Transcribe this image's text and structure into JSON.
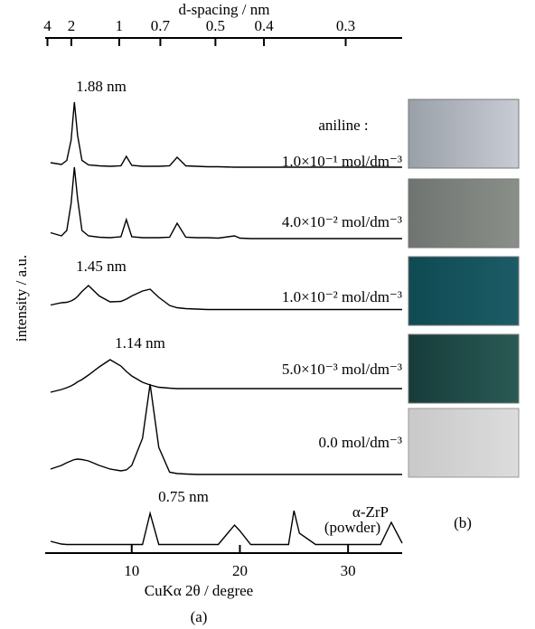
{
  "chart_data": {
    "type": "line",
    "xlabel": "CuKα 2θ / degree",
    "ylabel": "intensity / a.u.",
    "x2label": "d-spacing / nm",
    "panel_labels": [
      "(a)",
      "(b)"
    ],
    "xlim": [
      2,
      35
    ],
    "xticks": [
      10,
      20,
      30
    ],
    "x2ticks": [
      4,
      2,
      1,
      0.7,
      0.5,
      0.4,
      0.3
    ],
    "ylim": [
      0,
      100
    ],
    "x": [
      2.5,
      3.5,
      4.0,
      4.4,
      4.7,
      5.0,
      5.4,
      6,
      7,
      8,
      9,
      9.5,
      10,
      11,
      11.7,
      12.5,
      13.5,
      14.2,
      15,
      16,
      17,
      18,
      19.5,
      20,
      21,
      23,
      24.5,
      25,
      25.5,
      27,
      29,
      31,
      33,
      34,
      35
    ],
    "series": [
      {
        "name": "1.0×10⁻¹ mol/dm⁻³",
        "color": "#000000",
        "values": [
          85,
          84.6,
          85.5,
          90,
          98.4,
          91,
          85.5,
          84.5,
          84.3,
          84.2,
          84.3,
          86.4,
          84.4,
          84.2,
          84.2,
          84.2,
          84.3,
          86.2,
          84.3,
          84.2,
          84.1,
          84.1,
          84,
          84,
          84,
          84,
          84,
          84,
          84,
          84,
          84,
          84,
          84,
          84,
          84
        ]
      },
      {
        "name": "4.0×10⁻² mol/dm⁻³",
        "color": "#000000",
        "values": [
          69.5,
          68.8,
          70,
          76,
          84,
          77,
          70,
          68.8,
          68.5,
          68.4,
          68.6,
          72.4,
          68.6,
          68.4,
          68.4,
          68.4,
          68.5,
          71.6,
          68.5,
          68.4,
          68.4,
          68.3,
          68.8,
          68.3,
          68.2,
          68.2,
          68.2,
          68.2,
          68.2,
          68.2,
          68.2,
          68.2,
          68.2,
          68.2,
          68.2
        ]
      },
      {
        "name": "1.0×10⁻² mol/dm⁻³",
        "color": "#000000",
        "values": [
          53.5,
          54,
          54.1,
          54.4,
          54.8,
          55.4,
          56.5,
          57.8,
          55.5,
          54.2,
          54.3,
          54.8,
          55.5,
          56.6,
          57,
          55.2,
          53.4,
          52.9,
          52.7,
          52.6,
          52.5,
          52.5,
          52.5,
          52.5,
          52.5,
          52.5,
          52.5,
          52.5,
          52.5,
          52.5,
          52.5,
          52.5,
          52.5,
          52.5,
          52.5
        ]
      },
      {
        "name": "5.0×10⁻³ mol/dm⁻³",
        "color": "#000000",
        "values": [
          34.2,
          34.8,
          35.2,
          35.6,
          36,
          36.5,
          37,
          38,
          39.8,
          41.4,
          40,
          38.8,
          37.8,
          36.4,
          35.8,
          35.3,
          35.1,
          35,
          35,
          35,
          35,
          35,
          35,
          35,
          35,
          35,
          35,
          35,
          35,
          35,
          35,
          35,
          35,
          35,
          35
        ]
      },
      {
        "name": "0.0 mol/dm⁻³",
        "color": "#000000",
        "values": [
          17.2,
          18,
          18.6,
          19,
          19.3,
          19.4,
          19.3,
          19,
          18,
          17.2,
          16.8,
          17,
          18,
          24,
          36,
          22,
          16.5,
          16.2,
          16.1,
          16,
          16,
          16,
          16,
          16,
          16,
          16,
          16,
          16,
          16,
          16,
          16,
          16,
          16,
          16,
          16
        ]
      },
      {
        "name": "α-ZrP",
        "color": "#000000",
        "values": [
          1.2,
          0.6,
          0.5,
          0.5,
          0.5,
          0.5,
          0.5,
          0.5,
          0.5,
          0.5,
          0.5,
          0.5,
          0.5,
          0.5,
          7.4,
          0.5,
          0.5,
          0.5,
          0.5,
          0.5,
          0.5,
          0.5,
          4.8,
          3.5,
          0.5,
          0.5,
          0.5,
          8,
          3,
          0.5,
          0.5,
          0.5,
          0.5,
          5.4,
          0.8
        ]
      }
    ],
    "annotations": [
      "aniline :",
      "1.88 nm",
      "1.45 nm",
      "1.14 nm",
      "0.75 nm",
      "(powder)"
    ]
  }
}
